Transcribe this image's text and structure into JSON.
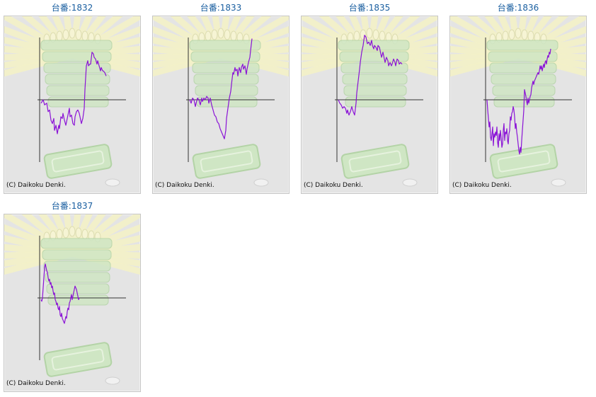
{
  "machines": [
    {
      "title": "台番:1832",
      "copyright": "(C) Daikoku Denki.",
      "graph": [
        [
          0,
          -0.1
        ],
        [
          3,
          0.0
        ],
        [
          5,
          -0.15
        ],
        [
          8,
          -0.1
        ],
        [
          10,
          -0.35
        ],
        [
          12,
          -0.3
        ],
        [
          14,
          -0.6
        ],
        [
          16,
          -0.7
        ],
        [
          18,
          -0.55
        ],
        [
          19,
          -0.9
        ],
        [
          21,
          -0.75
        ],
        [
          23,
          -1.0
        ],
        [
          25,
          -0.75
        ],
        [
          26,
          -0.85
        ],
        [
          28,
          -0.5
        ],
        [
          30,
          -0.55
        ],
        [
          31,
          -0.4
        ],
        [
          33,
          -0.6
        ],
        [
          35,
          -0.75
        ],
        [
          37,
          -0.55
        ],
        [
          38,
          -0.45
        ],
        [
          40,
          -0.25
        ],
        [
          41,
          -0.5
        ],
        [
          43,
          -0.45
        ],
        [
          45,
          -0.7
        ],
        [
          47,
          -0.75
        ],
        [
          48,
          -0.5
        ],
        [
          50,
          -0.35
        ],
        [
          52,
          -0.3
        ],
        [
          54,
          -0.4
        ],
        [
          56,
          -0.6
        ],
        [
          57,
          -0.7
        ],
        [
          59,
          -0.55
        ],
        [
          61,
          -0.25
        ],
        [
          62,
          0.3
        ],
        [
          64,
          1.0
        ],
        [
          66,
          1.15
        ],
        [
          67,
          1.0
        ],
        [
          69,
          1.05
        ],
        [
          70,
          1.05
        ],
        [
          72,
          1.4
        ],
        [
          74,
          1.35
        ],
        [
          75,
          1.25
        ],
        [
          77,
          1.2
        ],
        [
          79,
          1.05
        ],
        [
          80,
          1.15
        ],
        [
          82,
          1.0
        ],
        [
          84,
          0.85
        ],
        [
          85,
          0.95
        ],
        [
          87,
          0.85
        ],
        [
          88,
          0.85
        ],
        [
          90,
          0.8
        ],
        [
          92,
          0.7
        ]
      ]
    },
    {
      "title": "台番:1833",
      "copyright": "(C) Daikoku Denki.",
      "graph": [
        [
          0,
          0.0
        ],
        [
          2,
          -0.1
        ],
        [
          4,
          0.05
        ],
        [
          6,
          0.0
        ],
        [
          8,
          -0.2
        ],
        [
          9,
          -0.1
        ],
        [
          11,
          0.05
        ],
        [
          13,
          0.0
        ],
        [
          15,
          -0.15
        ],
        [
          17,
          0.05
        ],
        [
          18,
          -0.05
        ],
        [
          20,
          0.05
        ],
        [
          22,
          0.0
        ],
        [
          24,
          0.1
        ],
        [
          26,
          0.05
        ],
        [
          27,
          -0.1
        ],
        [
          29,
          0.05
        ],
        [
          31,
          -0.15
        ],
        [
          33,
          -0.3
        ],
        [
          35,
          -0.45
        ],
        [
          37,
          -0.5
        ],
        [
          39,
          -0.65
        ],
        [
          41,
          -0.7
        ],
        [
          43,
          -0.85
        ],
        [
          45,
          -0.95
        ],
        [
          47,
          -1.05
        ],
        [
          49,
          -1.15
        ],
        [
          51,
          -0.9
        ],
        [
          52,
          -0.55
        ],
        [
          54,
          -0.25
        ],
        [
          56,
          0.05
        ],
        [
          58,
          0.25
        ],
        [
          59,
          0.45
        ],
        [
          61,
          0.8
        ],
        [
          62,
          0.75
        ],
        [
          64,
          0.95
        ],
        [
          65,
          0.85
        ],
        [
          67,
          0.9
        ],
        [
          68,
          0.7
        ],
        [
          70,
          0.95
        ],
        [
          72,
          0.8
        ],
        [
          73,
          0.95
        ],
        [
          75,
          1.05
        ],
        [
          76,
          0.9
        ],
        [
          78,
          1.0
        ],
        [
          80,
          0.75
        ],
        [
          81,
          0.9
        ],
        [
          83,
          1.1
        ],
        [
          85,
          1.25
        ],
        [
          86,
          1.45
        ],
        [
          88,
          1.8
        ]
      ]
    },
    {
      "title": "台番:1835",
      "copyright": "(C) Daikoku Denki.",
      "graph": [
        [
          0,
          0.0
        ],
        [
          2,
          -0.1
        ],
        [
          4,
          -0.15
        ],
        [
          6,
          -0.25
        ],
        [
          8,
          -0.2
        ],
        [
          10,
          -0.25
        ],
        [
          12,
          -0.4
        ],
        [
          13,
          -0.3
        ],
        [
          15,
          -0.45
        ],
        [
          17,
          -0.35
        ],
        [
          19,
          -0.2
        ],
        [
          21,
          -0.35
        ],
        [
          23,
          -0.45
        ],
        [
          25,
          -0.1
        ],
        [
          26,
          0.2
        ],
        [
          28,
          0.55
        ],
        [
          30,
          0.9
        ],
        [
          31,
          1.1
        ],
        [
          33,
          1.4
        ],
        [
          35,
          1.6
        ],
        [
          37,
          1.9
        ],
        [
          39,
          1.85
        ],
        [
          41,
          1.65
        ],
        [
          43,
          1.7
        ],
        [
          45,
          1.6
        ],
        [
          47,
          1.75
        ],
        [
          48,
          1.6
        ],
        [
          50,
          1.5
        ],
        [
          51,
          1.6
        ],
        [
          53,
          1.55
        ],
        [
          55,
          1.45
        ],
        [
          56,
          1.6
        ],
        [
          58,
          1.55
        ],
        [
          60,
          1.35
        ],
        [
          61,
          1.25
        ],
        [
          63,
          1.4
        ],
        [
          65,
          1.2
        ],
        [
          66,
          1.1
        ],
        [
          68,
          1.25
        ],
        [
          70,
          1.15
        ],
        [
          71,
          1.0
        ],
        [
          73,
          1.1
        ],
        [
          75,
          1.0
        ],
        [
          76,
          1.05
        ],
        [
          78,
          1.2
        ],
        [
          80,
          1.1
        ],
        [
          81,
          1.0
        ],
        [
          83,
          1.2
        ],
        [
          85,
          1.15
        ],
        [
          86,
          1.05
        ],
        [
          88,
          1.1
        ],
        [
          90,
          1.05
        ]
      ]
    },
    {
      "title": "台番:1836",
      "copyright": "(C) Daikoku Denki.",
      "graph": [
        [
          0,
          0.0
        ],
        [
          1,
          -0.3
        ],
        [
          3,
          -0.8
        ],
        [
          4,
          -0.65
        ],
        [
          5,
          -1.1
        ],
        [
          6,
          -1.2
        ],
        [
          8,
          -0.8
        ],
        [
          9,
          -1.35
        ],
        [
          10,
          -1.0
        ],
        [
          11,
          -1.1
        ],
        [
          12,
          -0.95
        ],
        [
          13,
          -1.05
        ],
        [
          14,
          -0.8
        ],
        [
          15,
          -1.25
        ],
        [
          16,
          -1.4
        ],
        [
          17,
          -1.0
        ],
        [
          18,
          -1.2
        ],
        [
          19,
          -0.9
        ],
        [
          20,
          -1.1
        ],
        [
          21,
          -1.4
        ],
        [
          22,
          -1.3
        ],
        [
          23,
          -0.9
        ],
        [
          24,
          -0.7
        ],
        [
          25,
          -1.2
        ],
        [
          26,
          -0.95
        ],
        [
          27,
          -1.0
        ],
        [
          28,
          -0.85
        ],
        [
          29,
          -1.2
        ],
        [
          30,
          -1.3
        ],
        [
          31,
          -1.0
        ],
        [
          32,
          -0.9
        ],
        [
          33,
          -0.5
        ],
        [
          34,
          -0.6
        ],
        [
          35,
          -0.4
        ],
        [
          36,
          -0.35
        ],
        [
          37,
          -0.2
        ],
        [
          38,
          -0.3
        ],
        [
          39,
          -0.5
        ],
        [
          40,
          -0.85
        ],
        [
          41,
          -0.7
        ],
        [
          42,
          -0.95
        ],
        [
          43,
          -1.1
        ],
        [
          44,
          -1.3
        ],
        [
          45,
          -1.5
        ],
        [
          46,
          -1.6
        ],
        [
          47,
          -1.4
        ],
        [
          48,
          -1.55
        ],
        [
          49,
          -1.2
        ],
        [
          50,
          -0.9
        ],
        [
          51,
          -0.6
        ],
        [
          52,
          -0.3
        ],
        [
          53,
          0.3
        ],
        [
          54,
          0.2
        ],
        [
          55,
          0.1
        ],
        [
          56,
          -0.05
        ],
        [
          57,
          -0.15
        ],
        [
          58,
          0.05
        ],
        [
          59,
          -0.1
        ],
        [
          60,
          0.0
        ],
        [
          61,
          0.1
        ],
        [
          62,
          0.15
        ],
        [
          63,
          0.35
        ],
        [
          64,
          0.45
        ],
        [
          65,
          0.55
        ],
        [
          66,
          0.45
        ],
        [
          67,
          0.55
        ],
        [
          68,
          0.6
        ],
        [
          69,
          0.65
        ],
        [
          70,
          0.7
        ],
        [
          71,
          0.75
        ],
        [
          72,
          0.8
        ],
        [
          73,
          0.75
        ],
        [
          74,
          0.85
        ],
        [
          75,
          1.0
        ],
        [
          76,
          0.9
        ],
        [
          77,
          1.0
        ],
        [
          78,
          0.85
        ],
        [
          79,
          0.95
        ],
        [
          80,
          1.05
        ],
        [
          81,
          0.95
        ],
        [
          82,
          1.1
        ],
        [
          83,
          1.15
        ],
        [
          84,
          1.05
        ],
        [
          85,
          1.2
        ],
        [
          86,
          1.3
        ],
        [
          87,
          1.25
        ],
        [
          88,
          1.4
        ],
        [
          89,
          1.35
        ],
        [
          90,
          1.5
        ]
      ]
    },
    {
      "title": "台番:1837",
      "copyright": "(C) Daikoku Denki.",
      "graph": [
        [
          0,
          -0.05
        ],
        [
          1,
          -0.1
        ],
        [
          2,
          0.0
        ],
        [
          3,
          0.3
        ],
        [
          4,
          0.6
        ],
        [
          5,
          0.9
        ],
        [
          6,
          1.0
        ],
        [
          7,
          0.9
        ],
        [
          8,
          0.8
        ],
        [
          9,
          0.75
        ],
        [
          10,
          0.6
        ],
        [
          11,
          0.5
        ],
        [
          12,
          0.55
        ],
        [
          13,
          0.4
        ],
        [
          14,
          0.45
        ],
        [
          15,
          0.3
        ],
        [
          16,
          0.35
        ],
        [
          17,
          0.2
        ],
        [
          18,
          0.1
        ],
        [
          19,
          0.15
        ],
        [
          20,
          -0.05
        ],
        [
          21,
          -0.1
        ],
        [
          22,
          -0.2
        ],
        [
          23,
          -0.15
        ],
        [
          24,
          -0.3
        ],
        [
          25,
          -0.35
        ],
        [
          26,
          -0.25
        ],
        [
          27,
          -0.5
        ],
        [
          28,
          -0.55
        ],
        [
          29,
          -0.45
        ],
        [
          30,
          -0.6
        ],
        [
          31,
          -0.65
        ],
        [
          32,
          -0.7
        ],
        [
          33,
          -0.75
        ],
        [
          34,
          -0.65
        ],
        [
          35,
          -0.55
        ],
        [
          36,
          -0.6
        ],
        [
          37,
          -0.4
        ],
        [
          38,
          -0.3
        ],
        [
          39,
          -0.35
        ],
        [
          40,
          -0.15
        ],
        [
          41,
          -0.1
        ],
        [
          42,
          0.0
        ],
        [
          43,
          0.1
        ],
        [
          44,
          -0.05
        ],
        [
          45,
          0.05
        ],
        [
          46,
          0.15
        ],
        [
          47,
          0.25
        ],
        [
          48,
          0.35
        ],
        [
          49,
          0.3
        ],
        [
          50,
          0.25
        ],
        [
          51,
          0.15
        ],
        [
          52,
          0.05
        ],
        [
          53,
          -0.05
        ],
        [
          54,
          0.0
        ]
      ]
    }
  ],
  "colors": {
    "line": "#8a12d6",
    "axis": "#333333",
    "title": "#1a5fa0"
  }
}
